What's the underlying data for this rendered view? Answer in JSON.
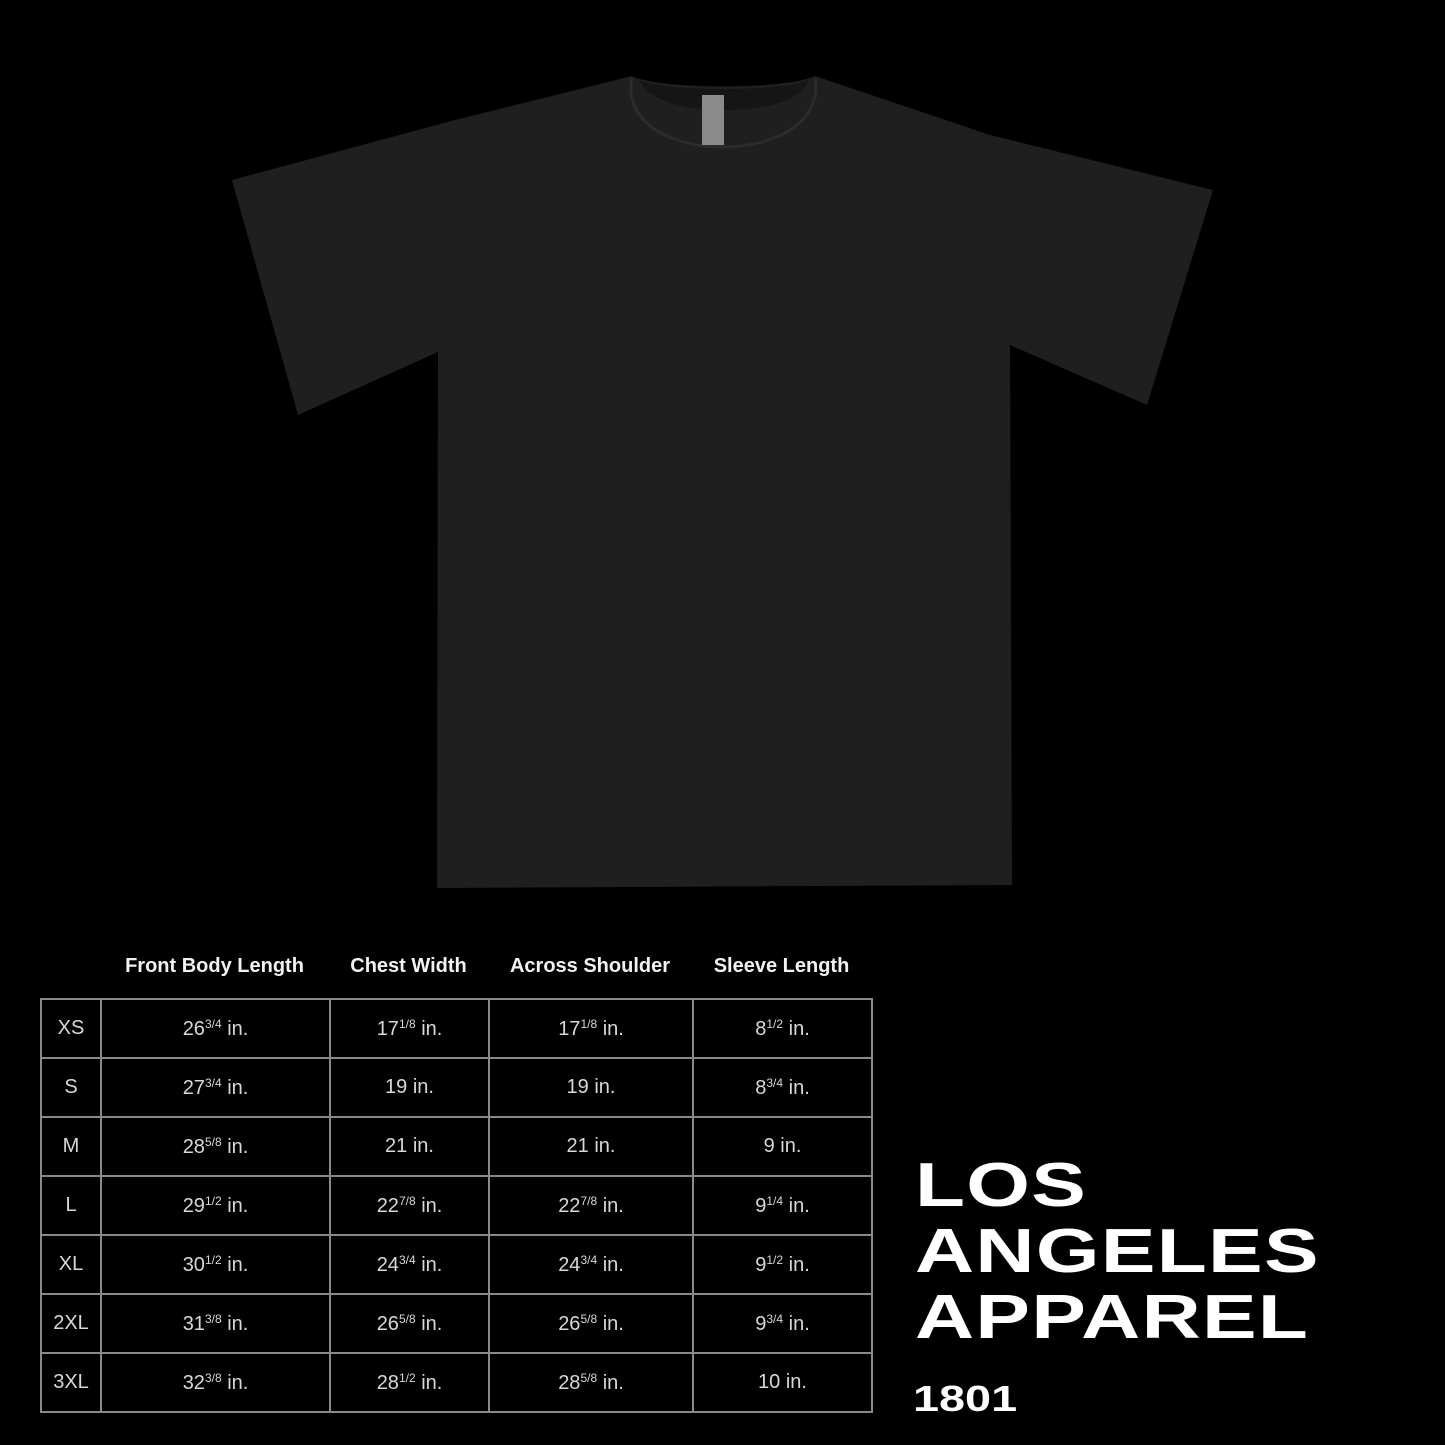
{
  "product": {
    "garment": "t-shirt",
    "color": "#1f1f1f",
    "label_icon": "neck-label"
  },
  "size_chart": {
    "headers": [
      "Front Body Length",
      "Chest Width",
      "Across Shoulder",
      "Sleeve Length"
    ],
    "unit": "in.",
    "rows": [
      {
        "size": "XS",
        "values": [
          [
            "26",
            "3/4"
          ],
          [
            "17",
            "1/8"
          ],
          [
            "17",
            "1/8"
          ],
          [
            "8",
            "1/2"
          ]
        ]
      },
      {
        "size": "S",
        "values": [
          [
            "27",
            "3/4"
          ],
          [
            "19",
            ""
          ],
          [
            "19",
            ""
          ],
          [
            "8",
            "3/4"
          ]
        ]
      },
      {
        "size": "M",
        "values": [
          [
            "28",
            "5/8"
          ],
          [
            "21",
            ""
          ],
          [
            "21",
            ""
          ],
          [
            "9",
            ""
          ]
        ]
      },
      {
        "size": "L",
        "values": [
          [
            "29",
            "1/2"
          ],
          [
            "22",
            "7/8"
          ],
          [
            "22",
            "7/8"
          ],
          [
            "9",
            "1/4"
          ]
        ]
      },
      {
        "size": "XL",
        "values": [
          [
            "30",
            "1/2"
          ],
          [
            "24",
            "3/4"
          ],
          [
            "24",
            "3/4"
          ],
          [
            "9",
            "1/2"
          ]
        ]
      },
      {
        "size": "2XL",
        "values": [
          [
            "31",
            "3/8"
          ],
          [
            "26",
            "5/8"
          ],
          [
            "26",
            "5/8"
          ],
          [
            "9",
            "3/4"
          ]
        ]
      },
      {
        "size": "3XL",
        "values": [
          [
            "32",
            "3/8"
          ],
          [
            "28",
            "1/2"
          ],
          [
            "28",
            "5/8"
          ],
          [
            "10",
            ""
          ]
        ]
      }
    ]
  },
  "brand": {
    "lines": [
      "LOS",
      "ANGELES",
      "APPAREL"
    ],
    "style_number": "1801"
  }
}
